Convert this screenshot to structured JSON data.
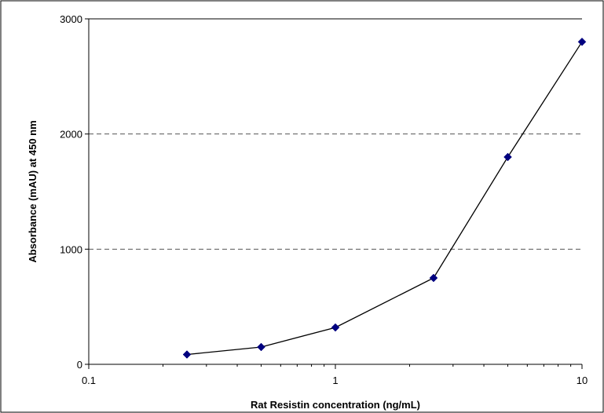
{
  "chart_data": {
    "type": "scatter",
    "title": "",
    "xlabel": "Rat Resistin concentration (ng/mL)",
    "ylabel": "Absorbance (mAU) at 450 nm",
    "x_scale": "log",
    "xlim": [
      0.1,
      10
    ],
    "ylim": [
      0,
      3000
    ],
    "x_ticks": [
      0.1,
      1,
      10
    ],
    "x_tick_labels": [
      "0.1",
      "1",
      "10"
    ],
    "y_ticks": [
      0,
      1000,
      2000,
      3000
    ],
    "y_tick_labels": [
      "0",
      "1000",
      "2000",
      "3000"
    ],
    "grid": "horizontal dashed",
    "legend": "none",
    "series": [
      {
        "x": [
          0.25,
          0.5,
          1,
          2.5,
          5,
          10
        ],
        "y": [
          85,
          150,
          320,
          750,
          1800,
          2800
        ],
        "color": "#000080",
        "line_color": "#000000",
        "marker": "diamond"
      }
    ]
  }
}
